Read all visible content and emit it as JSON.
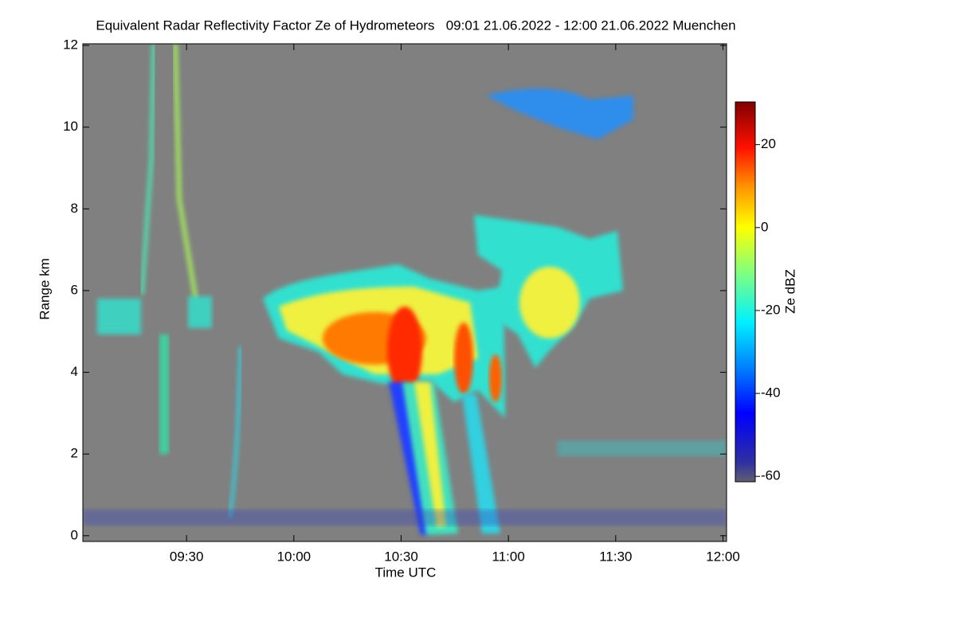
{
  "chart_data": {
    "type": "heatmap",
    "title": "Equivalent Radar Reflectivity Factor Ze of Hydrometeors   09:01 21.06.2022 - 12:00 21.06.2022 Muenchen",
    "xlabel": "Time UTC",
    "ylabel": "Range km",
    "xlim": [
      541,
      721
    ],
    "xticks": [
      {
        "value": 570,
        "label": "09:30"
      },
      {
        "value": 600,
        "label": "10:00"
      },
      {
        "value": 630,
        "label": "10:30"
      },
      {
        "value": 660,
        "label": "11:00"
      },
      {
        "value": 690,
        "label": "11:30"
      },
      {
        "value": 720,
        "label": "12:00"
      }
    ],
    "ylim": [
      -0.14,
      12.04
    ],
    "yticks": [
      0,
      2,
      4,
      6,
      8,
      10,
      12
    ],
    "colorbar": {
      "label": "Ze dBZ",
      "lim": [
        -61.3,
        30.3
      ],
      "ticks": [
        20,
        0,
        -20,
        -40,
        -60
      ]
    }
  }
}
